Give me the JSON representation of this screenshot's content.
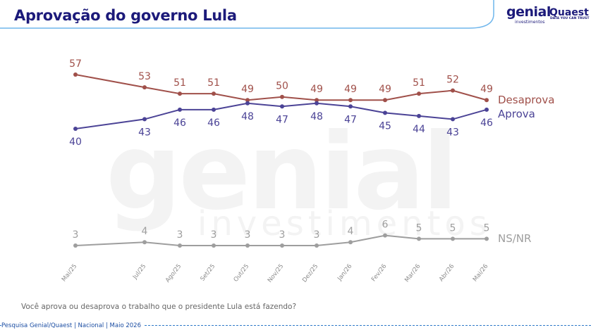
{
  "title": "Aprovação do governo Lula",
  "logos": {
    "genial": "genial",
    "genial_sub": "investimentos",
    "quaest": "Quaest",
    "quaest_sub": "DATA YOU CAN TRUST"
  },
  "watermark": {
    "line1": "genial",
    "line2": "investimentos"
  },
  "question": "Você aprova ou desaprova o trabalho que o presidente Lula está fazendo?",
  "footer": "Pesquisa Genial/Quaest | Nacional | Maio 2026",
  "colors": {
    "desaprova": "#a0504a",
    "aprova": "#4b4396",
    "nsnr": "#9e9e9e",
    "title": "#1c1a7a",
    "footer": "#1c4ea3"
  },
  "chart_data": {
    "type": "line",
    "categories": [
      "Mai/25",
      "Jul/25",
      "Ago/25",
      "Set/25",
      "Out/25",
      "Nov/25",
      "Dez/25",
      "Jan/26",
      "Fev/26",
      "Mar/26",
      "Abr/26",
      "Mai/26"
    ],
    "series": [
      {
        "name": "Desaprova",
        "values": [
          57,
          53,
          51,
          51,
          49,
          50,
          49,
          49,
          49,
          51,
          52,
          49
        ]
      },
      {
        "name": "Aprova",
        "values": [
          40,
          43,
          46,
          46,
          48,
          47,
          48,
          47,
          45,
          44,
          43,
          46
        ]
      },
      {
        "name": "NS/NR",
        "values": [
          3,
          4,
          3,
          3,
          3,
          3,
          3,
          4,
          6,
          5,
          5,
          5
        ]
      }
    ]
  }
}
